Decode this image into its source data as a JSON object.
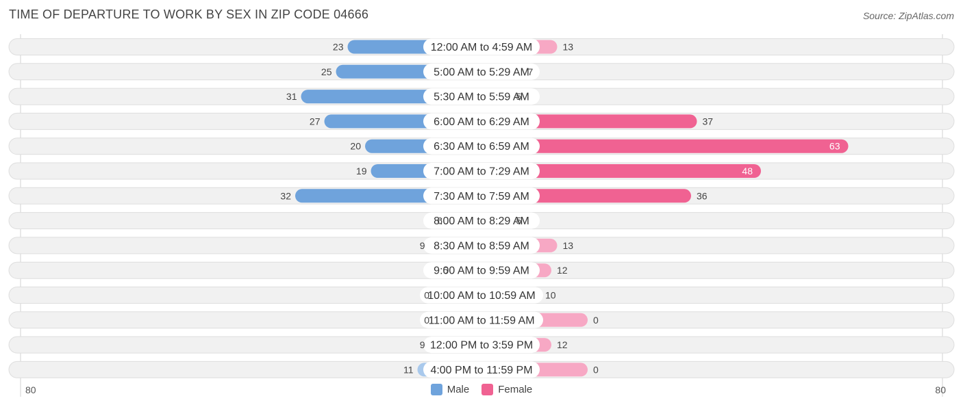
{
  "header": {
    "title": "TIME OF DEPARTURE TO WORK BY SEX IN ZIP CODE 04666",
    "source": "Source: ZipAtlas.com"
  },
  "colors": {
    "male_bar": "#6fa3dc",
    "male_bar_light": "#a9c9ec",
    "female_bar": "#f06292",
    "female_bar_light": "#f7a8c4",
    "row_bg": "#f1f1f1",
    "row_border": "#dedede"
  },
  "legend": {
    "male_label": "Male",
    "female_label": "Female"
  },
  "axis": {
    "left_label": "80",
    "right_label": "80"
  },
  "chart_data": {
    "type": "bar",
    "orientation": "horizontal-diverging",
    "title": "TIME OF DEPARTURE TO WORK BY SEX IN ZIP CODE 04666",
    "categories": [
      "12:00 AM to 4:59 AM",
      "5:00 AM to 5:29 AM",
      "5:30 AM to 5:59 AM",
      "6:00 AM to 6:29 AM",
      "6:30 AM to 6:59 AM",
      "7:00 AM to 7:29 AM",
      "7:30 AM to 7:59 AM",
      "8:00 AM to 8:29 AM",
      "8:30 AM to 8:59 AM",
      "9:00 AM to 9:59 AM",
      "10:00 AM to 10:59 AM",
      "11:00 AM to 11:59 AM",
      "12:00 PM to 3:59 PM",
      "4:00 PM to 11:59 PM"
    ],
    "series": [
      {
        "name": "Male",
        "values": [
          23,
          25,
          31,
          27,
          20,
          19,
          32,
          6,
          9,
          5,
          0,
          0,
          9,
          11
        ]
      },
      {
        "name": "Female",
        "values": [
          13,
          7,
          5,
          37,
          63,
          48,
          36,
          5,
          13,
          12,
          10,
          0,
          12,
          0
        ]
      }
    ],
    "xlim": [
      -80,
      80
    ],
    "legend_position": "bottom-center"
  }
}
